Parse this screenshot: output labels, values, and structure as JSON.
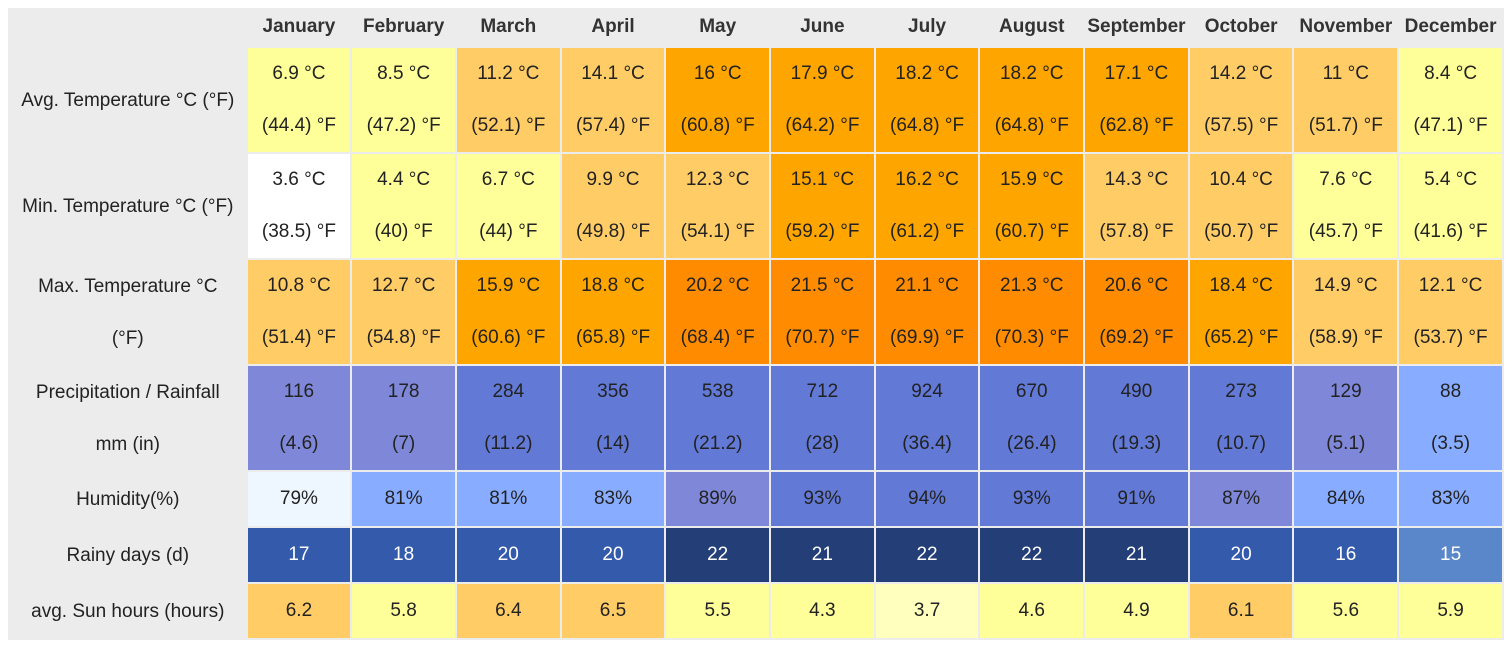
{
  "months": [
    "January",
    "February",
    "March",
    "April",
    "May",
    "June",
    "July",
    "August",
    "September",
    "October",
    "November",
    "December"
  ],
  "rows": [
    {
      "label": "Avg. Temperature °C (°F)",
      "kind": "two",
      "line1": [
        "6.9 °C",
        "8.5 °C",
        "11.2 °C",
        "14.1 °C",
        "16 °C",
        "17.9 °C",
        "18.2 °C",
        "18.2 °C",
        "17.1 °C",
        "14.2 °C",
        "11 °C",
        "8.4 °C"
      ],
      "line2": [
        "(44.4) °F",
        "(47.2) °F",
        "(52.1) °F",
        "(57.4) °F",
        "(60.8) °F",
        "(64.2) °F",
        "(64.8) °F",
        "(64.8) °F",
        "(62.8) °F",
        "(57.5) °F",
        "(51.7) °F",
        "(47.1) °F"
      ],
      "colors": [
        "#ffff99",
        "#ffff99",
        "#ffcc66",
        "#ffcc66",
        "#ffa500",
        "#ffa500",
        "#ffa500",
        "#ffa500",
        "#ffa500",
        "#ffcc66",
        "#ffcc66",
        "#ffff99"
      ]
    },
    {
      "label": "Min. Temperature °C (°F)",
      "kind": "two",
      "line1": [
        "3.6 °C",
        "4.4 °C",
        "6.7 °C",
        "9.9 °C",
        "12.3 °C",
        "15.1 °C",
        "16.2 °C",
        "15.9 °C",
        "14.3 °C",
        "10.4 °C",
        "7.6 °C",
        "5.4 °C"
      ],
      "line2": [
        "(38.5) °F",
        "(40) °F",
        "(44) °F",
        "(49.8) °F",
        "(54.1) °F",
        "(59.2) °F",
        "(61.2) °F",
        "(60.7) °F",
        "(57.8) °F",
        "(50.7) °F",
        "(45.7) °F",
        "(41.6) °F"
      ],
      "colors": [
        "#ffffff",
        "#ffff99",
        "#ffff99",
        "#ffcc66",
        "#ffcc66",
        "#ffa500",
        "#ffa500",
        "#ffa500",
        "#ffcc66",
        "#ffcc66",
        "#ffff99",
        "#ffff99"
      ]
    },
    {
      "label": "Max. Temperature °C (°F)",
      "label_line1": "Max. Temperature °C",
      "label_line2": "(°F)",
      "kind": "two",
      "line1": [
        "10.8 °C",
        "12.7 °C",
        "15.9 °C",
        "18.8 °C",
        "20.2 °C",
        "21.5 °C",
        "21.1 °C",
        "21.3 °C",
        "20.6 °C",
        "18.4 °C",
        "14.9 °C",
        "12.1 °C"
      ],
      "line2": [
        "(51.4) °F",
        "(54.8) °F",
        "(60.6) °F",
        "(65.8) °F",
        "(68.4) °F",
        "(70.7) °F",
        "(69.9) °F",
        "(70.3) °F",
        "(69.2) °F",
        "(65.2) °F",
        "(58.9) °F",
        "(53.7) °F"
      ],
      "colors": [
        "#ffcc66",
        "#ffcc66",
        "#ffa500",
        "#ffa500",
        "#ff8c00",
        "#ff8c00",
        "#ff8c00",
        "#ff8c00",
        "#ff8c00",
        "#ffa500",
        "#ffcc66",
        "#ffcc66"
      ]
    },
    {
      "label": "Precipitation / Rainfall mm (in)",
      "label_line1": "Precipitation / Rainfall",
      "label_line2": "mm (in)",
      "kind": "two",
      "line1": [
        "116",
        "178",
        "284",
        "356",
        "538",
        "712",
        "924",
        "670",
        "490",
        "273",
        "129",
        "88"
      ],
      "line2": [
        "(4.6)",
        "(7)",
        "(11.2)",
        "(14)",
        "(21.2)",
        "(28)",
        "(36.4)",
        "(26.4)",
        "(19.3)",
        "(10.7)",
        "(5.1)",
        "(3.5)"
      ],
      "colors": [
        "#7f88d8",
        "#7f88d8",
        "#6279d6",
        "#6279d6",
        "#6279d6",
        "#6279d6",
        "#6279d6",
        "#6279d6",
        "#6279d6",
        "#6279d6",
        "#7f88d8",
        "#88acff"
      ]
    },
    {
      "label": "Humidity(%)",
      "kind": "one",
      "line1": [
        "79%",
        "81%",
        "81%",
        "83%",
        "89%",
        "93%",
        "94%",
        "93%",
        "91%",
        "87%",
        "84%",
        "83%"
      ],
      "colors": [
        "#eef6ff",
        "#88acff",
        "#88acff",
        "#88acff",
        "#7f88d8",
        "#6279d6",
        "#6279d6",
        "#6279d6",
        "#6279d6",
        "#7f88d8",
        "#88acff",
        "#88acff"
      ]
    },
    {
      "label": "Rainy days (d)",
      "kind": "one",
      "line1": [
        "17",
        "18",
        "20",
        "20",
        "22",
        "21",
        "22",
        "22",
        "21",
        "20",
        "16",
        "15"
      ],
      "colors": [
        "#345aab",
        "#345aab",
        "#345aab",
        "#345aab",
        "#243f78",
        "#243f78",
        "#243f78",
        "#243f78",
        "#243f78",
        "#345aab",
        "#345aab",
        "#5a87c9"
      ]
    },
    {
      "label": "avg. Sun hours (hours)",
      "kind": "one",
      "line1": [
        "6.2",
        "5.8",
        "6.4",
        "6.5",
        "5.5",
        "4.3",
        "3.7",
        "4.6",
        "4.9",
        "6.1",
        "5.6",
        "5.9"
      ],
      "colors": [
        "#ffcc66",
        "#ffff99",
        "#ffcc66",
        "#ffcc66",
        "#ffff99",
        "#ffff99",
        "#ffffbe",
        "#ffff99",
        "#ffff99",
        "#ffcc66",
        "#ffff99",
        "#ffff99"
      ]
    }
  ],
  "colors_text": {
    "dark_cells_text": "#ffffff",
    "light_cells_text": "#222222"
  }
}
